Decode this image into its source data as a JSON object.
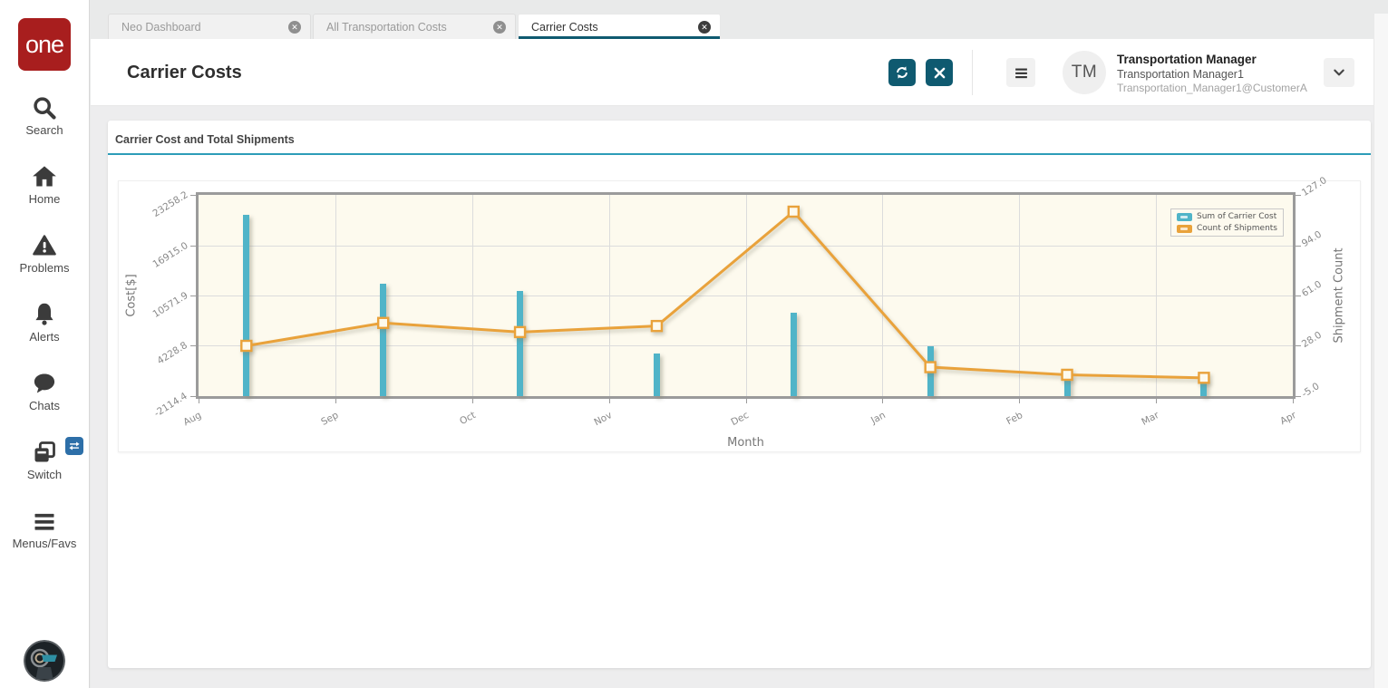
{
  "sidebar": {
    "logo_text": "one",
    "items": [
      {
        "label": "Search",
        "icon": "search-icon"
      },
      {
        "label": "Home",
        "icon": "home-icon"
      },
      {
        "label": "Problems",
        "icon": "warning-triangle-icon"
      },
      {
        "label": "Alerts",
        "icon": "bell-icon"
      },
      {
        "label": "Chats",
        "icon": "chat-bubble-icon"
      },
      {
        "label": "Switch",
        "icon": "windows-stack-icon",
        "badge_icon": "swap-arrows-icon"
      },
      {
        "label": "Menus/Favs",
        "icon": "hamburger-icon"
      }
    ]
  },
  "tabs": [
    {
      "label": "Neo Dashboard",
      "active": false,
      "close_icon": "circle-x-icon"
    },
    {
      "label": "All Transportation Costs",
      "active": false,
      "close_icon": "circle-x-icon"
    },
    {
      "label": "Carrier Costs",
      "active": true,
      "close_icon": "circle-x-icon"
    }
  ],
  "header": {
    "title": "Carrier Costs",
    "action_icons": {
      "refresh": "refresh-icon",
      "close": "close-icon",
      "menu": "hamburger-icon",
      "expand": "chevron-down-icon"
    },
    "user": {
      "initials": "TM",
      "role": "Transportation Manager",
      "name": "Transportation Manager1",
      "id": "Transportation_Manager1@CustomerA"
    }
  },
  "colors": {
    "accent_teal": "#0F5A70",
    "panel_underline": "#2D9CB8",
    "logo_red": "#A81E1E",
    "badge_blue": "#2D6FA8",
    "bar_teal": "#50B4C8",
    "line_orange": "#E9A23B",
    "plot_background": "#FDFAEE"
  },
  "chart_data": {
    "type": "bar+line combo",
    "title": "Carrier Cost and Total Shipments",
    "categories": [
      "Aug",
      "Sep",
      "Oct",
      "Nov",
      "Dec",
      "Jan",
      "Feb",
      "Mar"
    ],
    "x_axis": {
      "label": "Month",
      "ticks": [
        "Aug",
        "Sep",
        "Oct",
        "Nov",
        "Dec",
        "Jan",
        "Feb",
        "Mar",
        "Apr"
      ]
    },
    "y_axis_left": {
      "label": "Cost[$]",
      "min": -2114.4,
      "max": 23258.2,
      "tick_values": [
        -2114.4,
        4228.8,
        10571.9,
        16915.0,
        23258.2
      ],
      "tick_labels": [
        "-2114.4",
        "4228.8",
        "10571.9",
        "16915.0",
        "23258.2"
      ]
    },
    "y_axis_right": {
      "label": "Shipment Count",
      "min": -5.0,
      "max": 127.0,
      "tick_values": [
        -5.0,
        28.0,
        61.0,
        94.0,
        127.0
      ],
      "tick_labels": [
        "-5.0",
        "28.0",
        "61.0",
        "94.0",
        "127.0"
      ]
    },
    "series": [
      {
        "name": "Sum of Carrier Cost",
        "type": "bar",
        "axis": "left",
        "color": "#50B4C8",
        "values": [
          20800,
          12100,
          11200,
          3300,
          8400,
          4200,
          400,
          150
        ]
      },
      {
        "name": "Count of Shipments",
        "type": "line",
        "axis": "right",
        "color": "#E9A23B",
        "values": [
          28,
          43,
          37,
          41,
          116,
          14,
          9,
          7
        ]
      }
    ],
    "legend_position": "top-right",
    "grid": true,
    "plot_bg": "#FDFAEE"
  }
}
